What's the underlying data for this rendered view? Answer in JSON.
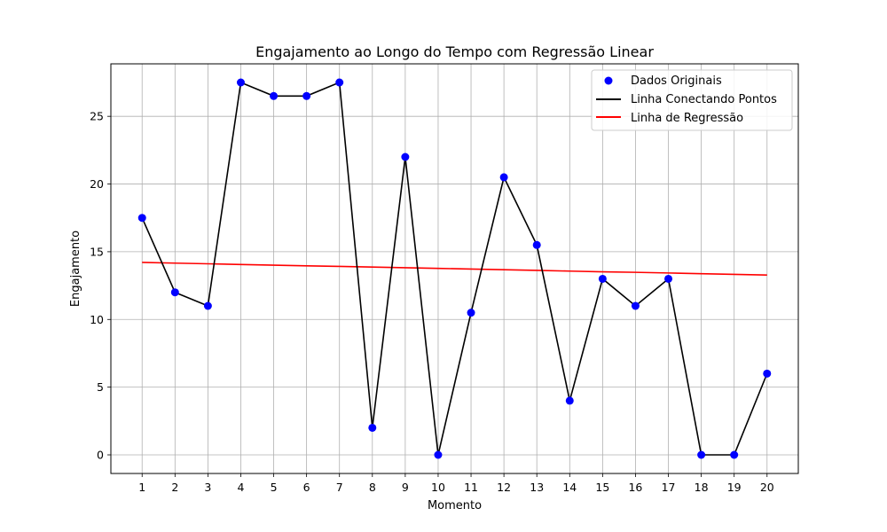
{
  "chart_data": {
    "type": "line",
    "title": "Engajamento ao Longo do Tempo com Regressão Linear",
    "xlabel": "Momento",
    "ylabel": "Engajamento",
    "x": [
      1,
      2,
      3,
      4,
      5,
      6,
      7,
      8,
      9,
      10,
      11,
      12,
      13,
      14,
      15,
      16,
      17,
      18,
      19,
      20
    ],
    "x_ticks": [
      "1",
      "2",
      "3",
      "4",
      "5",
      "6",
      "7",
      "8",
      "9",
      "10",
      "11",
      "12",
      "13",
      "14",
      "15",
      "16",
      "17",
      "18",
      "19",
      "20"
    ],
    "y_ticks": [
      "0",
      "5",
      "10",
      "15",
      "20",
      "25"
    ],
    "xlim": [
      0.05,
      20.95
    ],
    "ylim": [
      -1.375,
      28.875
    ],
    "grid": true,
    "legend_position": "top-right",
    "series": [
      {
        "name": "Dados Originais",
        "kind": "scatter",
        "color": "#0000ff",
        "values": [
          17.5,
          12,
          11,
          27.5,
          26.5,
          26.5,
          27.5,
          2,
          22,
          0,
          10.5,
          20.5,
          15.5,
          4,
          13,
          11,
          13,
          0,
          0,
          6
        ]
      },
      {
        "name": "Linha Conectando Pontos",
        "kind": "line",
        "color": "#000000",
        "values": [
          17.5,
          12,
          11,
          27.5,
          26.5,
          26.5,
          27.5,
          2,
          22,
          0,
          10.5,
          20.5,
          15.5,
          4,
          13,
          11,
          13,
          0,
          0,
          6
        ]
      },
      {
        "name": "Linha de Regressão",
        "kind": "line",
        "color": "#ff0000",
        "values": [
          14.21,
          14.16,
          14.11,
          14.06,
          14.01,
          13.96,
          13.92,
          13.87,
          13.82,
          13.77,
          13.72,
          13.67,
          13.62,
          13.57,
          13.52,
          13.48,
          13.43,
          13.38,
          13.33,
          13.28
        ]
      }
    ]
  }
}
